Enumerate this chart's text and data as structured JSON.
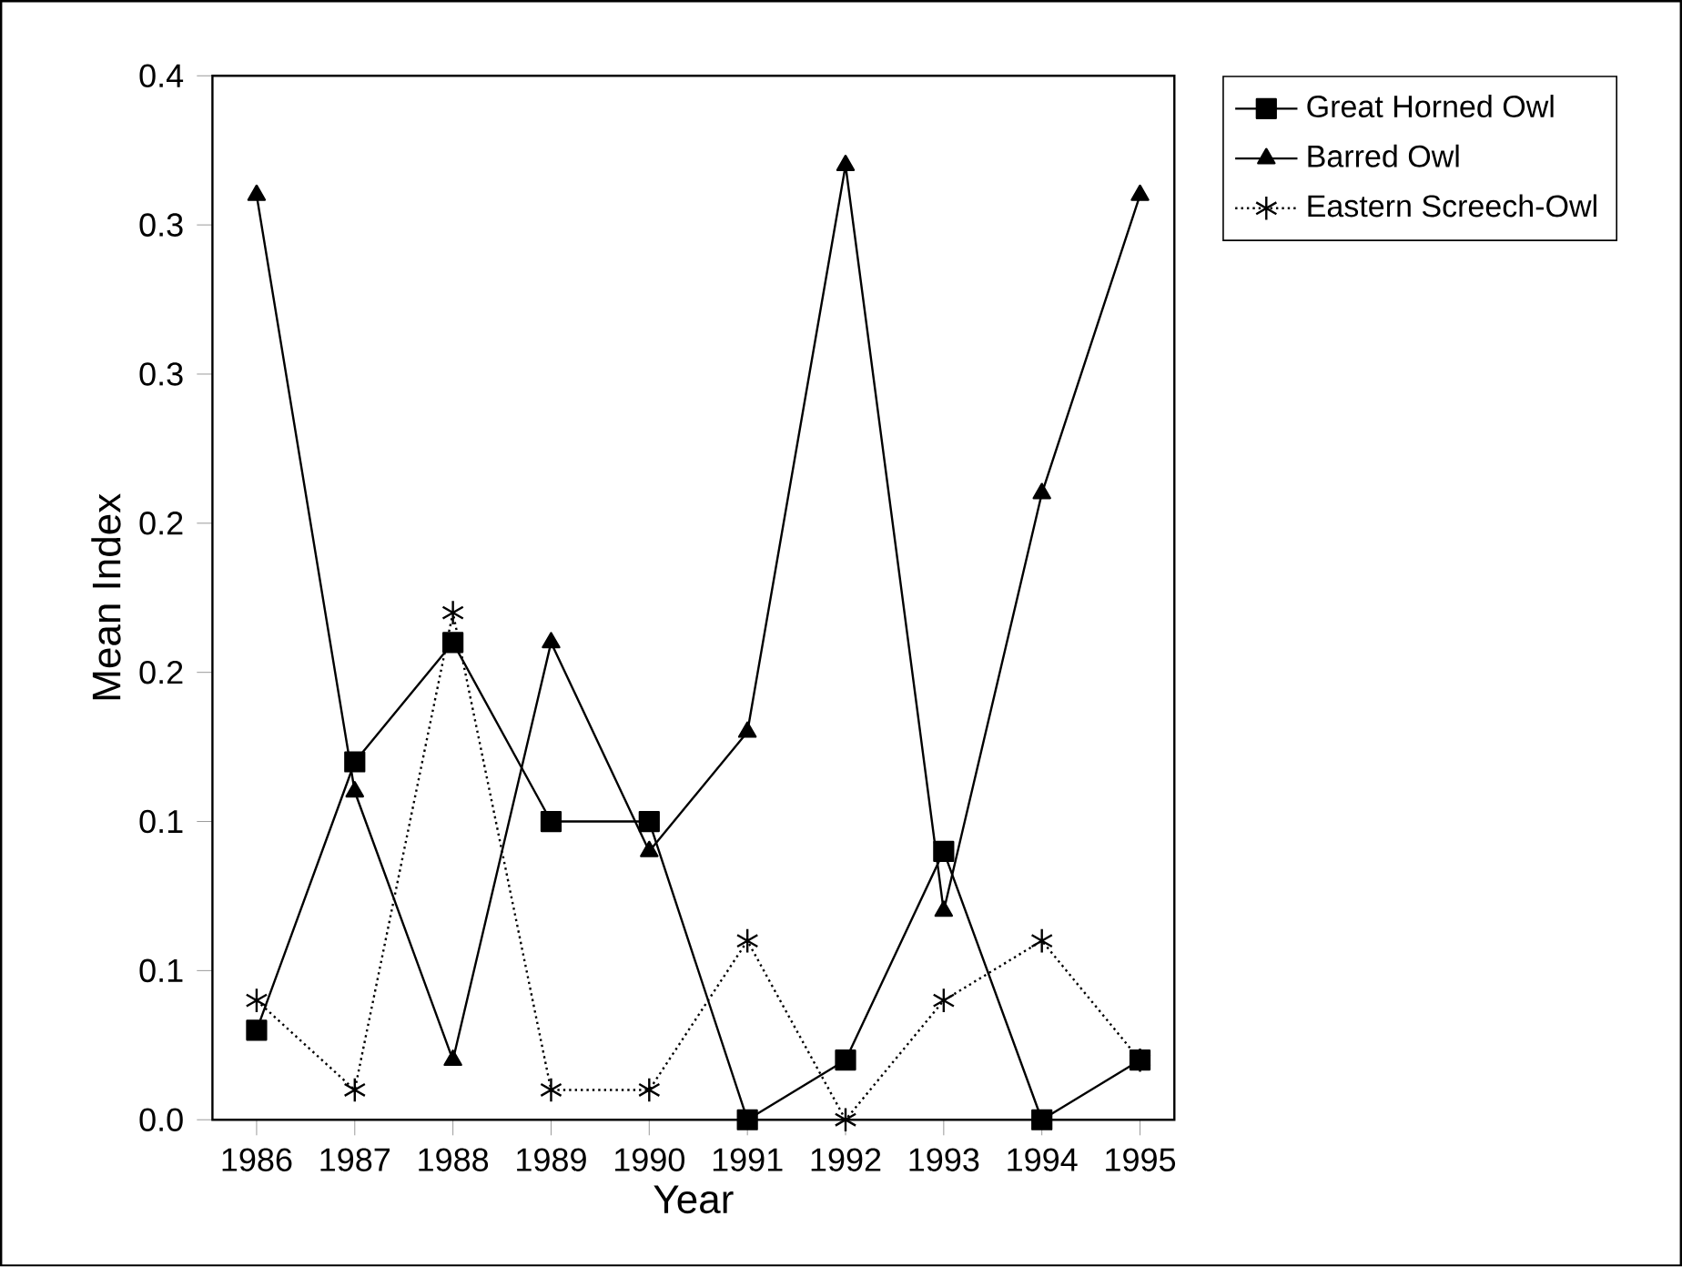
{
  "chart_data": {
    "type": "line",
    "xlabel": "Year",
    "ylabel": "Mean Index",
    "categories": [
      "1986",
      "1987",
      "1988",
      "1989",
      "1990",
      "1991",
      "1992",
      "1993",
      "1994",
      "1995"
    ],
    "series": [
      {
        "name": "Great Horned Owl",
        "color": "#000000",
        "marker": "square",
        "line_style": "solid",
        "values": [
          0.03,
          0.12,
          0.16,
          0.1,
          0.1,
          0.0,
          0.02,
          0.09,
          0.0,
          0.02
        ]
      },
      {
        "name": "Barred Owl",
        "color": "#000000",
        "marker": "triangle",
        "line_style": "solid",
        "values": [
          0.31,
          0.11,
          0.02,
          0.16,
          0.09,
          0.13,
          0.32,
          0.07,
          0.21,
          0.31
        ]
      },
      {
        "name": "Eastern Screech-Owl",
        "color": "#000000",
        "marker": "cross",
        "line_style": "dotted",
        "values": [
          0.04,
          0.01,
          0.17,
          0.01,
          0.01,
          0.06,
          0.0,
          0.04,
          0.06,
          0.02
        ]
      }
    ],
    "ylim": [
      0,
      0.35
    ],
    "yticks": [
      {
        "value": 0,
        "label": "0.0"
      },
      {
        "value": 0.05,
        "label": "0.1"
      },
      {
        "value": 0.1,
        "label": "0.1"
      },
      {
        "value": 0.15,
        "label": "0.2"
      },
      {
        "value": 0.2,
        "label": "0.2"
      },
      {
        "value": 0.25,
        "label": "0.3"
      },
      {
        "value": 0.3,
        "label": "0.3"
      },
      {
        "value": 0.35,
        "label": "0.4"
      }
    ],
    "legend": "top right"
  }
}
